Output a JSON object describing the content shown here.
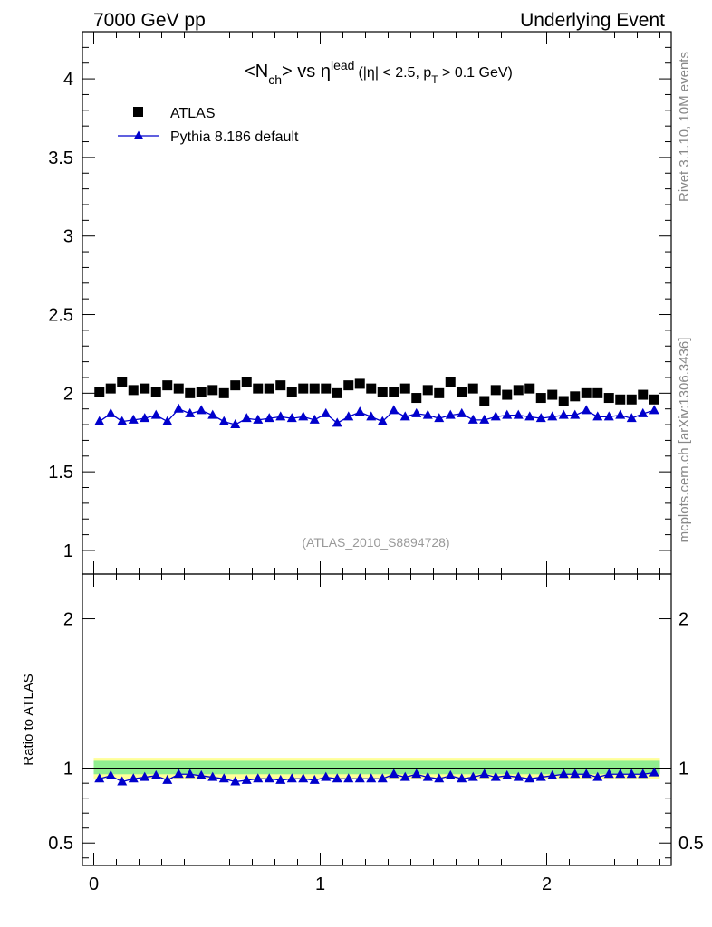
{
  "header": {
    "left": "7000 GeV pp",
    "right": "Underlying Event"
  },
  "side": {
    "rivet": "Rivet 3.1.10,  10M events",
    "mcplots": "mcplots.cern.ch [arXiv:1306.3436]"
  },
  "colors": {
    "data": "#000000",
    "mc": "#0000cc",
    "band_inner": "#90ee90",
    "band_outer": "#ffff99",
    "watermark": "#999999"
  },
  "chart_data": [
    {
      "type": "scatter",
      "panel": "main",
      "title": {
        "n": "<N",
        "n_sub": "ch",
        "vs": "> vs ",
        "eta": "η",
        "eta_sup": "lead",
        "cut_a": "(|η| < 2.5, p",
        "cut_sub": "T",
        "cut_b": " > 0.1 GeV)"
      },
      "watermark": "(ATLAS_2010_S8894728)",
      "legend_placement": "top-left",
      "xlim": [
        -0.05,
        2.55
      ],
      "ylim": [
        0.85,
        4.3
      ],
      "yticks": [
        1,
        1.5,
        2,
        2.5,
        3,
        3.5,
        4
      ],
      "ytick_labels": [
        "1",
        "1.5",
        "2",
        "2.5",
        "3",
        "3.5",
        "4"
      ],
      "x": [
        0.025,
        0.075,
        0.125,
        0.175,
        0.225,
        0.275,
        0.325,
        0.375,
        0.425,
        0.475,
        0.525,
        0.575,
        0.625,
        0.675,
        0.725,
        0.775,
        0.825,
        0.875,
        0.925,
        0.975,
        1.025,
        1.075,
        1.125,
        1.175,
        1.225,
        1.275,
        1.325,
        1.375,
        1.425,
        1.475,
        1.525,
        1.575,
        1.625,
        1.675,
        1.725,
        1.775,
        1.825,
        1.875,
        1.925,
        1.975,
        2.025,
        2.075,
        2.125,
        2.175,
        2.225,
        2.275,
        2.325,
        2.375,
        2.425,
        2.475
      ],
      "series": [
        {
          "name": "ATLAS",
          "marker": "square",
          "values": [
            2.01,
            2.03,
            2.07,
            2.02,
            2.03,
            2.01,
            2.05,
            2.03,
            2.0,
            2.01,
            2.02,
            2.0,
            2.05,
            2.07,
            2.03,
            2.03,
            2.05,
            2.01,
            2.03,
            2.03,
            2.03,
            2.0,
            2.05,
            2.06,
            2.03,
            2.01,
            2.01,
            2.03,
            1.97,
            2.02,
            2.0,
            2.07,
            2.01,
            2.03,
            1.95,
            2.02,
            1.99,
            2.02,
            2.03,
            1.97,
            1.99,
            1.95,
            1.98,
            2.0,
            2.0,
            1.97,
            1.96,
            1.96,
            1.99,
            1.96
          ]
        },
        {
          "name": "Pythia 8.186 default",
          "marker": "triangle",
          "values": [
            1.82,
            1.87,
            1.82,
            1.83,
            1.84,
            1.86,
            1.82,
            1.9,
            1.87,
            1.89,
            1.86,
            1.82,
            1.8,
            1.84,
            1.83,
            1.84,
            1.85,
            1.84,
            1.85,
            1.83,
            1.87,
            1.81,
            1.85,
            1.88,
            1.85,
            1.82,
            1.89,
            1.85,
            1.87,
            1.86,
            1.84,
            1.86,
            1.87,
            1.83,
            1.83,
            1.85,
            1.86,
            1.86,
            1.85,
            1.84,
            1.85,
            1.86,
            1.86,
            1.89,
            1.85,
            1.85,
            1.86,
            1.84,
            1.87,
            1.89
          ]
        }
      ]
    },
    {
      "type": "scatter",
      "panel": "ratio",
      "ylabel": "Ratio to ATLAS",
      "xlim": [
        -0.05,
        2.55
      ],
      "ylim": [
        0.35,
        2.3
      ],
      "yticks": [
        0.5,
        1,
        2
      ],
      "ytick_labels": [
        "0.5",
        "1",
        "2"
      ],
      "xticks": [
        0,
        1,
        2
      ],
      "xtick_labels": [
        "0",
        "1",
        "2"
      ],
      "reference_line": 1,
      "band_inner": [
        0.96,
        1.05
      ],
      "band_outer": [
        0.93,
        1.07
      ],
      "series": [
        {
          "name": "Pythia 8.186 default",
          "marker": "triangle",
          "values": [
            0.93,
            0.95,
            0.91,
            0.93,
            0.94,
            0.95,
            0.92,
            0.96,
            0.96,
            0.95,
            0.94,
            0.93,
            0.91,
            0.92,
            0.93,
            0.93,
            0.92,
            0.93,
            0.93,
            0.92,
            0.94,
            0.93,
            0.93,
            0.93,
            0.93,
            0.93,
            0.96,
            0.94,
            0.96,
            0.94,
            0.93,
            0.95,
            0.93,
            0.94,
            0.96,
            0.94,
            0.95,
            0.94,
            0.93,
            0.94,
            0.95,
            0.96,
            0.96,
            0.96,
            0.94,
            0.96,
            0.96,
            0.96,
            0.96,
            0.97
          ]
        }
      ]
    }
  ]
}
